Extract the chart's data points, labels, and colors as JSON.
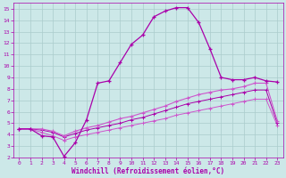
{
  "xlabel": "Windchill (Refroidissement éolien,°C)",
  "xlim": [
    -0.5,
    23.5
  ],
  "ylim": [
    2,
    15.5
  ],
  "xticks": [
    0,
    1,
    2,
    3,
    4,
    5,
    6,
    7,
    8,
    9,
    10,
    11,
    12,
    13,
    14,
    15,
    16,
    17,
    18,
    19,
    20,
    21,
    22,
    23
  ],
  "yticks": [
    2,
    3,
    4,
    5,
    6,
    7,
    8,
    9,
    10,
    11,
    12,
    13,
    14,
    15
  ],
  "background_color": "#cce8e8",
  "grid_color": "#aacccc",
  "line_color": "#aa00aa",
  "line_color2": "#cc55cc",
  "series1_x": [
    0,
    1,
    2,
    3,
    4,
    5,
    6,
    7,
    8,
    9,
    10,
    11,
    12,
    13,
    14,
    15,
    16,
    17,
    18,
    19,
    20,
    21,
    22,
    23
  ],
  "series1_y": [
    4.5,
    4.5,
    3.9,
    3.8,
    2.1,
    3.3,
    5.3,
    8.5,
    8.7,
    10.3,
    11.9,
    12.7,
    14.3,
    14.8,
    15.1,
    15.1,
    13.8,
    11.5,
    9.0,
    8.8,
    8.8,
    9.0,
    8.7,
    8.6
  ],
  "series2_x": [
    0,
    1,
    2,
    3,
    4,
    5,
    6,
    7,
    8,
    9,
    10,
    11,
    12,
    13,
    14,
    15,
    16,
    17,
    18,
    19,
    20,
    21,
    22,
    23
  ],
  "series2_y": [
    4.5,
    4.5,
    4.5,
    4.3,
    3.9,
    4.3,
    4.6,
    4.8,
    5.1,
    5.4,
    5.6,
    5.9,
    6.2,
    6.5,
    6.9,
    7.2,
    7.5,
    7.7,
    7.9,
    8.0,
    8.2,
    8.5,
    8.5,
    5.2
  ],
  "series3_x": [
    0,
    1,
    2,
    3,
    4,
    5,
    6,
    7,
    8,
    9,
    10,
    11,
    12,
    13,
    14,
    15,
    16,
    17,
    18,
    19,
    20,
    21,
    22,
    23
  ],
  "series3_y": [
    4.5,
    4.5,
    4.4,
    4.2,
    3.8,
    4.1,
    4.4,
    4.6,
    4.8,
    5.0,
    5.3,
    5.5,
    5.8,
    6.1,
    6.4,
    6.7,
    6.9,
    7.1,
    7.3,
    7.5,
    7.7,
    7.9,
    7.9,
    5.0
  ],
  "series4_x": [
    0,
    1,
    2,
    3,
    4,
    5,
    6,
    7,
    8,
    9,
    10,
    11,
    12,
    13,
    14,
    15,
    16,
    17,
    18,
    19,
    20,
    21,
    22,
    23
  ],
  "series4_y": [
    4.5,
    4.5,
    4.2,
    3.9,
    3.5,
    3.8,
    4.0,
    4.2,
    4.4,
    4.6,
    4.8,
    5.0,
    5.2,
    5.4,
    5.7,
    5.9,
    6.1,
    6.3,
    6.5,
    6.7,
    6.9,
    7.1,
    7.1,
    4.8
  ]
}
